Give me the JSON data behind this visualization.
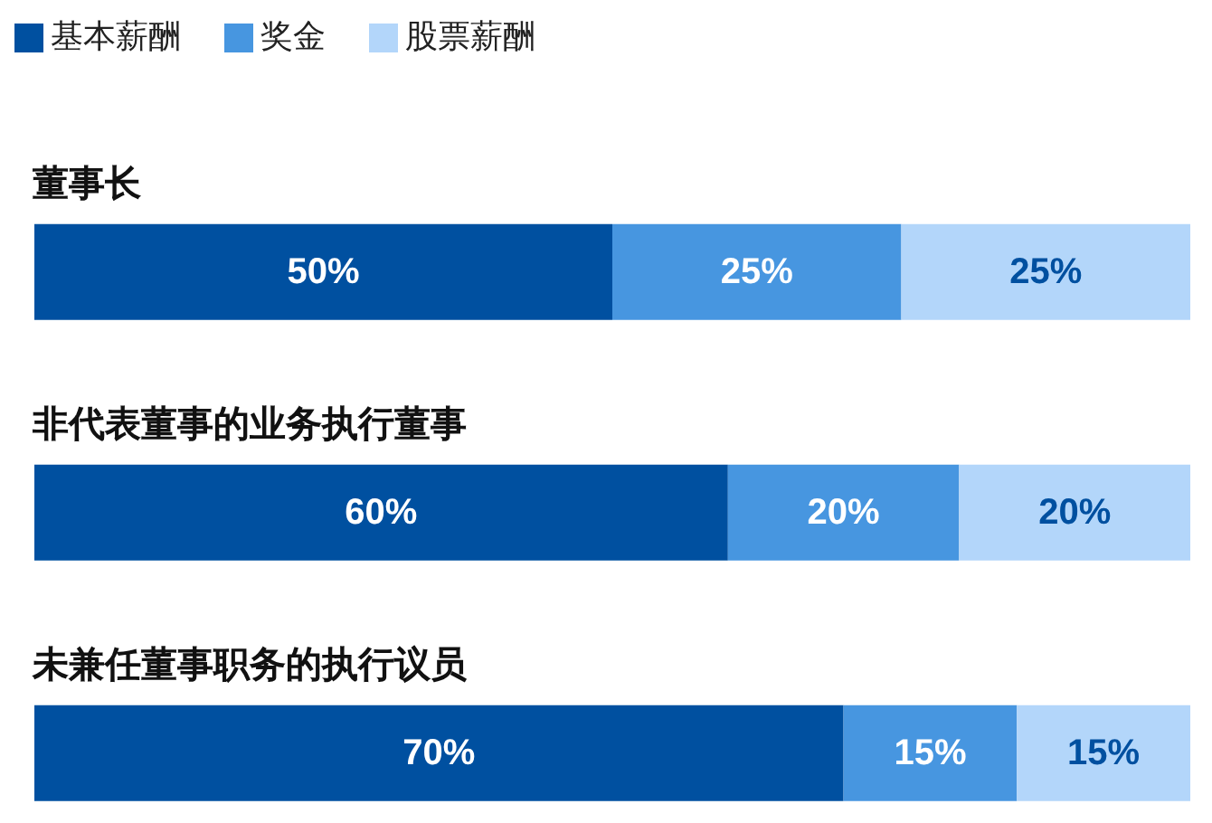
{
  "chart_data": {
    "type": "bar",
    "orientation": "horizontal",
    "stacked": true,
    "legend": "top left",
    "categories": [
      "董事长",
      "非代表董事的业务执行董事",
      "未兼任董事职务的执行议员"
    ],
    "series": [
      {
        "name": "基本薪酬",
        "color": "#0050a0",
        "values": [
          50,
          60,
          70
        ],
        "value_labels": [
          "50%",
          "60%",
          "70%"
        ]
      },
      {
        "name": "奖金",
        "color": "#4796e0",
        "values": [
          25,
          20,
          15
        ],
        "value_labels": [
          "25%",
          "20%",
          "15%"
        ]
      },
      {
        "name": "股票薪酬",
        "color": "#b3d6fa",
        "values": [
          25,
          20,
          15
        ],
        "value_labels": [
          "25%",
          "20%",
          "15%"
        ]
      }
    ]
  }
}
